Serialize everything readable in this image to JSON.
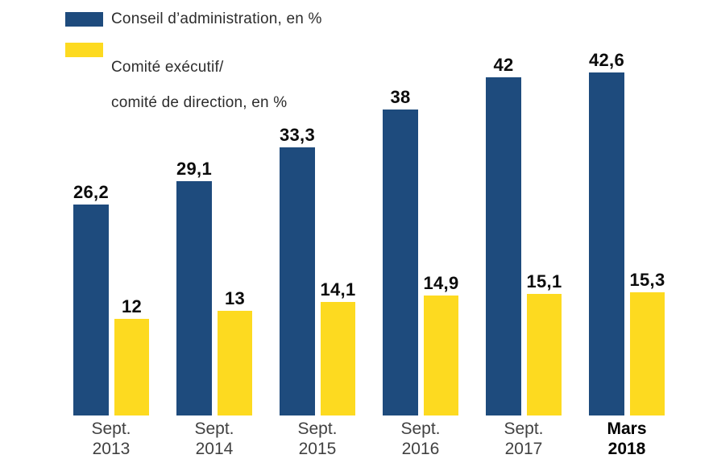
{
  "colors": {
    "board_blue": "#1E4B7D",
    "committee_yellow": "#FDDA20",
    "value_label": "#0C0C0C",
    "axis_label": "#414141",
    "axis_label_bold": "#000000",
    "background": "#FFFFFF"
  },
  "legend": {
    "items": [
      {
        "swatch": "blue-swatch",
        "color": "#1E4B7D",
        "lines": [
          "Conseil d’administration, en %"
        ]
      },
      {
        "swatch": "yellow-swatch",
        "color": "#FDDA20",
        "lines": [
          "Comité exécutif/",
          "comité de direction, en %"
        ]
      }
    ]
  },
  "chart_data": {
    "type": "bar",
    "title": "",
    "xlabel": "",
    "ylabel": "",
    "unit": "%",
    "categories": [
      "Sept. 2013",
      "Sept. 2014",
      "Sept. 2015",
      "Sept. 2016",
      "Sept. 2017",
      "Mars 2018"
    ],
    "category_lines": [
      [
        "Sept.",
        "2013"
      ],
      [
        "Sept.",
        "2014"
      ],
      [
        "Sept.",
        "2015"
      ],
      [
        "Sept.",
        "2016"
      ],
      [
        "Sept.",
        "2017"
      ],
      [
        "Mars",
        "2018"
      ]
    ],
    "bold_category_index": 5,
    "series": [
      {
        "name": "Conseil d’administration, en %",
        "color": "#1E4B7D",
        "values": [
          26.2,
          29.1,
          33.3,
          38,
          42,
          42.6
        ],
        "labels": [
          "26,2",
          "29,1",
          "33,3",
          "38",
          "42",
          "42,6"
        ]
      },
      {
        "name": "Comité exécutif/comité de direction, en %",
        "color": "#FDDA20",
        "values": [
          12,
          13,
          14.1,
          14.9,
          15.1,
          15.3
        ],
        "labels": [
          "12",
          "13",
          "14,1",
          "14,9",
          "15,1",
          "15,3"
        ]
      }
    ],
    "ylim": [
      0,
      45
    ],
    "grid": false,
    "value_labels": true,
    "legend_position": "top-left"
  }
}
